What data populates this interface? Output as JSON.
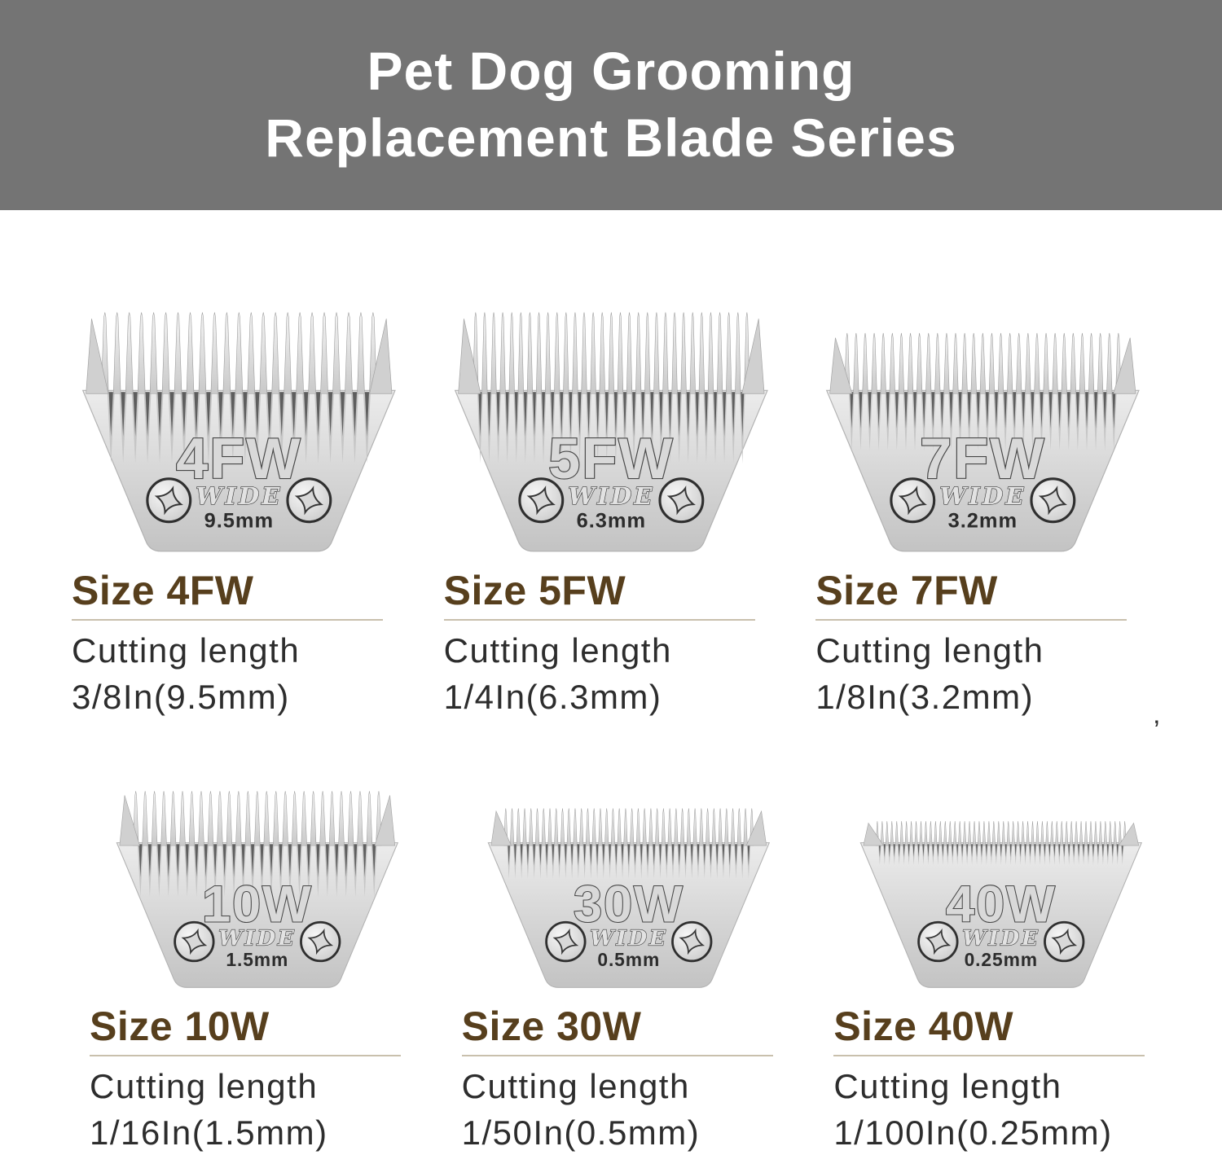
{
  "header": {
    "title_line1": "Pet Dog Grooming",
    "title_line2": "Replacement Blade Series"
  },
  "colors": {
    "banner_bg": "#747474",
    "banner_text": "#ffffff",
    "heading_brown": "#573f1d",
    "divider_tan": "#c9c0ad",
    "body_text": "#2d2d2d",
    "blade_silver": "#d7d7d7",
    "blade_engraving": "#474747",
    "tooth_slot_dark": "#606060"
  },
  "stray_mark": "’",
  "blades": [
    {
      "engraving": {
        "size": "4FW",
        "wide": "WIDE",
        "mm": "9.5mm"
      },
      "heading": "Size 4FW",
      "cutting_length_label": "Cutting length",
      "cutting_length_value": "3/8In(9.5mm)",
      "teeth_count": 23,
      "teeth_style": "long",
      "screw_icon": "phillips-star-screw"
    },
    {
      "engraving": {
        "size": "5FW",
        "wide": "WIDE",
        "mm": "6.3mm"
      },
      "heading": "Size 5FW",
      "cutting_length_label": "Cutting length",
      "cutting_length_value": "1/4In(6.3mm)",
      "teeth_count": 31,
      "teeth_style": "long",
      "screw_icon": "phillips-star-screw"
    },
    {
      "engraving": {
        "size": "7FW",
        "wide": "WIDE",
        "mm": "3.2mm"
      },
      "heading": "Size 7FW",
      "cutting_length_label": "Cutting length",
      "cutting_length_value": "1/8In(3.2mm)",
      "teeth_count": 31,
      "teeth_style": "medium",
      "screw_icon": "phillips-star-screw"
    },
    {
      "engraving": {
        "size": "10W",
        "wide": "WIDE",
        "mm": "1.5mm"
      },
      "heading": "Size 10W",
      "cutting_length_label": "Cutting length",
      "cutting_length_value": "1/16In(1.5mm)",
      "teeth_count": 27,
      "teeth_style": "medium",
      "screw_icon": "phillips-star-screw"
    },
    {
      "engraving": {
        "size": "30W",
        "wide": "WIDE",
        "mm": "0.5mm"
      },
      "heading": "Size 30W",
      "cutting_length_label": "Cutting length",
      "cutting_length_value": "1/50In(0.5mm)",
      "teeth_count": 40,
      "teeth_style": "fine",
      "screw_icon": "phillips-star-screw"
    },
    {
      "engraving": {
        "size": "40W",
        "wide": "WIDE",
        "mm": "0.25mm"
      },
      "heading": "Size 40W",
      "cutting_length_label": "Cutting length",
      "cutting_length_value": "1/100In(0.25mm)",
      "teeth_count": 52,
      "teeth_style": "extra-fine",
      "screw_icon": "phillips-star-screw"
    }
  ]
}
